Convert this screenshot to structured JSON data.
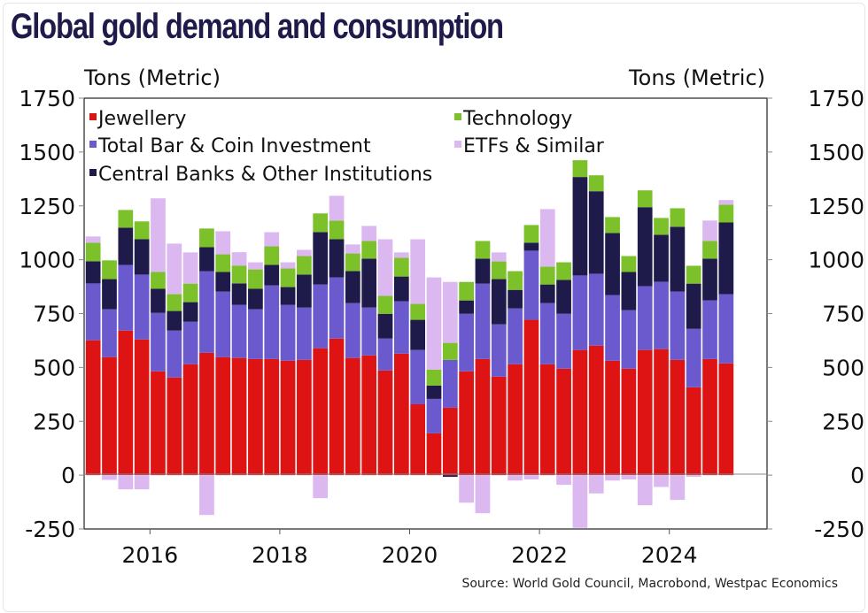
{
  "header": {
    "title": "Global gold demand and consumption",
    "left_unit": "Tons (Metric)",
    "right_unit": "Tons (Metric)"
  },
  "footer": {
    "source": "Source: World Gold Council, Macrobond, Westpac Economics"
  },
  "chart_data": {
    "type": "bar",
    "stacked": true,
    "title": "Global gold demand and consumption",
    "xlabel": "",
    "ylabel": "Tons (Metric)",
    "ylabel_right": "Tons (Metric)",
    "ylim": [
      -250,
      1750
    ],
    "yticks": [
      -250,
      0,
      250,
      500,
      750,
      1000,
      1250,
      1500,
      1750
    ],
    "ytick_labels": [
      "-250",
      "0",
      "250",
      "500",
      "750",
      "1000",
      "1250",
      "1500",
      "1750"
    ],
    "xticks": [
      "2016",
      "2018",
      "2020",
      "2022",
      "2024"
    ],
    "grid": false,
    "legend_position": "top (inside plot, two columns)",
    "categories": [
      "2015Q1",
      "2015Q2",
      "2015Q3",
      "2015Q4",
      "2016Q1",
      "2016Q2",
      "2016Q3",
      "2016Q4",
      "2017Q1",
      "2017Q2",
      "2017Q3",
      "2017Q4",
      "2018Q1",
      "2018Q2",
      "2018Q3",
      "2018Q4",
      "2019Q1",
      "2019Q2",
      "2019Q3",
      "2019Q4",
      "2020Q1",
      "2020Q2",
      "2020Q3",
      "2020Q4",
      "2021Q1",
      "2021Q2",
      "2021Q3",
      "2021Q4",
      "2022Q1",
      "2022Q2",
      "2022Q3",
      "2022Q4",
      "2023Q1",
      "2023Q2",
      "2023Q3",
      "2023Q4",
      "2024Q1",
      "2024Q2",
      "2024Q3",
      "2024Q4"
    ],
    "series": [
      {
        "name": "Jewellery",
        "color": "#de1414",
        "values": [
          626,
          548,
          671,
          630,
          482,
          453,
          515,
          568,
          548,
          544,
          539,
          539,
          531,
          535,
          589,
          634,
          544,
          556,
          486,
          564,
          329,
          194,
          313,
          482,
          539,
          457,
          515,
          721,
          515,
          494,
          581,
          601,
          531,
          494,
          581,
          585,
          535,
          408,
          539,
          519
        ]
      },
      {
        "name": "Total Bar & Coin Investment",
        "color": "#6a5acd",
        "values": [
          264,
          222,
          305,
          301,
          271,
          218,
          197,
          379,
          304,
          247,
          231,
          342,
          260,
          243,
          296,
          284,
          255,
          222,
          148,
          243,
          252,
          160,
          222,
          267,
          350,
          243,
          259,
          321,
          284,
          255,
          346,
          334,
          305,
          272,
          296,
          313,
          317,
          271,
          272,
          321
        ]
      },
      {
        "name": "Central Banks & Other Institutions",
        "color": "#1e1b4b",
        "values": [
          103,
          140,
          173,
          164,
          112,
          91,
          91,
          111,
          91,
          99,
          95,
          95,
          82,
          153,
          243,
          177,
          148,
          227,
          115,
          115,
          140,
          62,
          -8,
          62,
          116,
          210,
          86,
          37,
          86,
          157,
          457,
          383,
          288,
          177,
          367,
          218,
          301,
          210,
          194,
          333
        ]
      },
      {
        "name": "Technology",
        "color": "#7cc02a",
        "values": [
          86,
          87,
          82,
          83,
          78,
          78,
          86,
          87,
          82,
          83,
          90,
          86,
          87,
          86,
          87,
          87,
          82,
          82,
          83,
          87,
          74,
          74,
          79,
          86,
          82,
          82,
          87,
          82,
          83,
          82,
          78,
          74,
          74,
          74,
          78,
          78,
          86,
          83,
          82,
          83
        ]
      },
      {
        "name": "ETFs & Similar",
        "color": "#dcb8f0",
        "values": [
          29,
          -22,
          -66,
          -66,
          342,
          235,
          145,
          -185,
          107,
          62,
          33,
          66,
          28,
          29,
          -107,
          115,
          42,
          70,
          263,
          25,
          300,
          428,
          283,
          -128,
          -177,
          42,
          -25,
          -20,
          267,
          -45,
          -245,
          -85,
          -25,
          -20,
          -140,
          -55,
          -115,
          -8,
          95,
          21
        ]
      }
    ]
  }
}
